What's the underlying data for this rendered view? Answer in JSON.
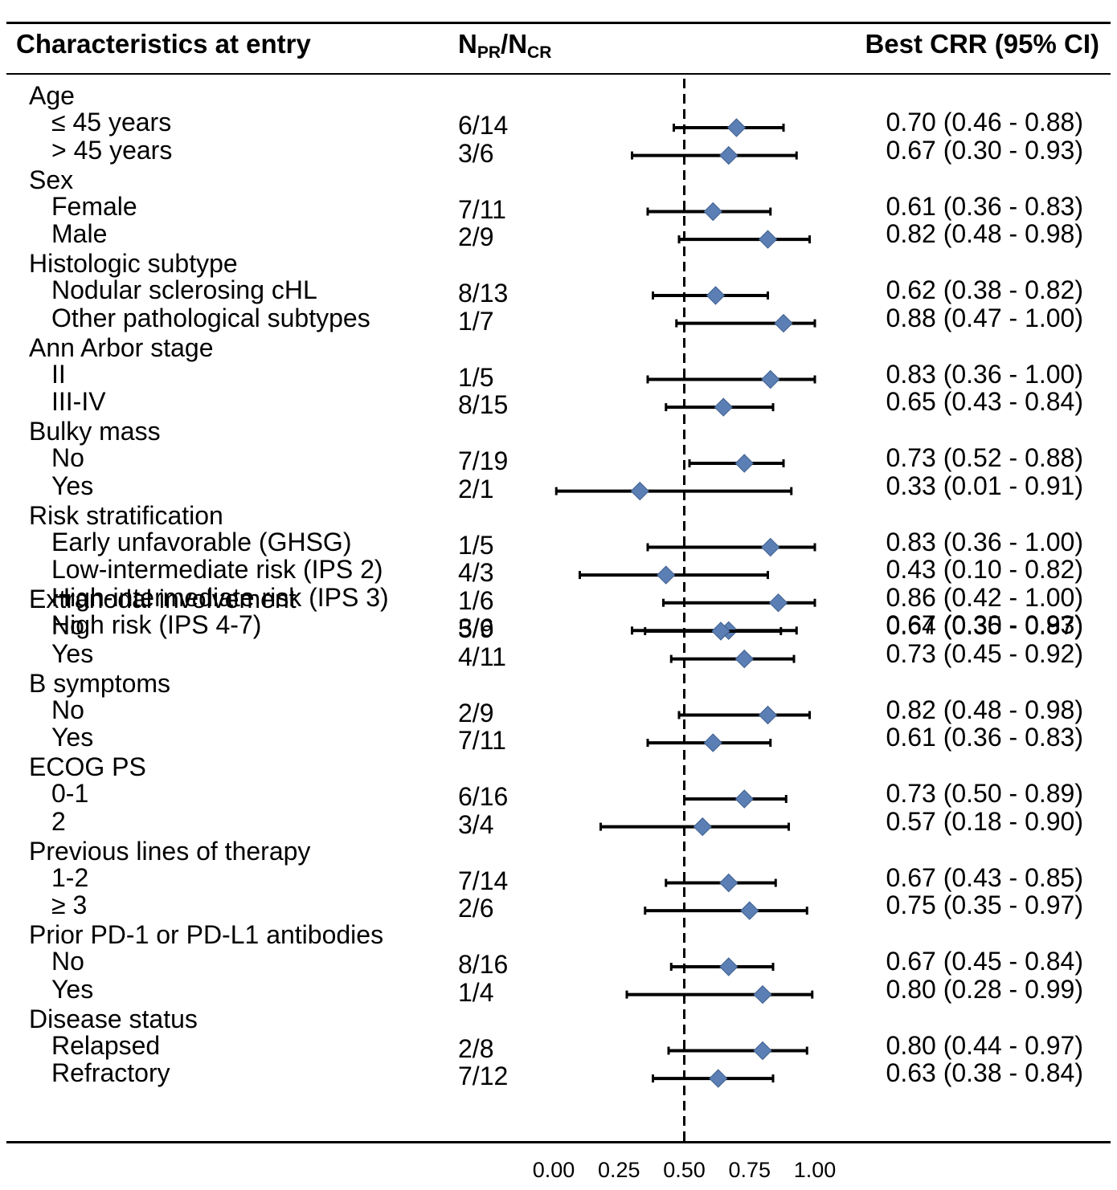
{
  "header": {
    "characteristics": "Characteristics at entry",
    "n_main": "N",
    "n_sub_pr": "PR",
    "n_slash": "/N",
    "n_sub_cr": "CR",
    "estimate": "Best CRR (95% CI)"
  },
  "chart_data": {
    "type": "forest",
    "xlim": [
      0.0,
      1.0
    ],
    "x_ticks": [
      "0.00",
      "0.25",
      "0.50",
      "0.75",
      "1.00"
    ],
    "x_tick_values": [
      0.0,
      0.25,
      0.5,
      0.75,
      1.0
    ],
    "reference_line": 0.5,
    "marker_color": "#5b7fb4",
    "groups": [
      {
        "label": "Age",
        "items": [
          {
            "label": "≤  45 years",
            "n": "6/14",
            "est": 0.7,
            "lo": 0.46,
            "hi": 0.88,
            "text": "0.70 (0.46 - 0.88)"
          },
          {
            "label": "> 45 years",
            "n": "3/6",
            "est": 0.67,
            "lo": 0.3,
            "hi": 0.93,
            "text": "0.67 (0.30 - 0.93)"
          }
        ]
      },
      {
        "label": "Sex",
        "items": [
          {
            "label": "Female",
            "n": "7/11",
            "est": 0.61,
            "lo": 0.36,
            "hi": 0.83,
            "text": "0.61 (0.36 - 0.83)"
          },
          {
            "label": "Male",
            "n": "2/9",
            "est": 0.82,
            "lo": 0.48,
            "hi": 0.98,
            "text": "0.82 (0.48 - 0.98)"
          }
        ]
      },
      {
        "label": "Histologic subtype",
        "items": [
          {
            "label": "Nodular sclerosing cHL",
            "n": "8/13",
            "est": 0.62,
            "lo": 0.38,
            "hi": 0.82,
            "text": "0.62 (0.38 - 0.82)"
          },
          {
            "label": "Other pathological subtypes",
            "n": "1/7",
            "est": 0.88,
            "lo": 0.47,
            "hi": 1.0,
            "text": "0.88 (0.47 - 1.00)"
          }
        ]
      },
      {
        "label": "Ann Arbor stage",
        "items": [
          {
            "label": "II",
            "n": "1/5",
            "est": 0.83,
            "lo": 0.36,
            "hi": 1.0,
            "text": "0.83 (0.36 - 1.00)"
          },
          {
            "label": "III-IV",
            "n": "8/15",
            "est": 0.65,
            "lo": 0.43,
            "hi": 0.84,
            "text": "0.65 (0.43 - 0.84)"
          }
        ]
      },
      {
        "label": "Bulky mass",
        "items": [
          {
            "label": "No",
            "n": "7/19",
            "est": 0.73,
            "lo": 0.52,
            "hi": 0.88,
            "text": "0.73 (0.52 - 0.88)"
          },
          {
            "label": "Yes",
            "n": "2/1",
            "est": 0.33,
            "lo": 0.01,
            "hi": 0.91,
            "text": "0.33 (0.01 - 0.91)"
          }
        ]
      },
      {
        "label": "Risk stratification",
        "items": [
          {
            "label": "Early unfavorable (GHSG)",
            "n": "1/5",
            "est": 0.83,
            "lo": 0.36,
            "hi": 1.0,
            "text": "0.83 (0.36 - 1.00)"
          },
          {
            "label": "Low-intermediate risk (IPS 2)",
            "n": "4/3",
            "est": 0.43,
            "lo": 0.1,
            "hi": 0.82,
            "text": "0.43 (0.10 - 0.82)"
          },
          {
            "label": "High-intermediate risk (IPS 3)",
            "n": "1/6",
            "est": 0.86,
            "lo": 0.42,
            "hi": 1.0,
            "text": "0.86 (0.42 - 1.00)"
          },
          {
            "label": "High risk (IPS 4-7)",
            "n": "3/6",
            "est": 0.67,
            "lo": 0.3,
            "hi": 0.93,
            "text": "0.67 (0.30 - 0.93)"
          }
        ]
      },
      {
        "label": "Extranodal involvement",
        "items": [
          {
            "label": "No",
            "n": "5/9",
            "est": 0.64,
            "lo": 0.35,
            "hi": 0.87,
            "text": "0.64 (0.35 - 0.87)"
          },
          {
            "label": "Yes",
            "n": "4/11",
            "est": 0.73,
            "lo": 0.45,
            "hi": 0.92,
            "text": "0.73 (0.45 - 0.92)"
          }
        ]
      },
      {
        "label": "B symptoms",
        "items": [
          {
            "label": "No",
            "n": "2/9",
            "est": 0.82,
            "lo": 0.48,
            "hi": 0.98,
            "text": "0.82 (0.48 - 0.98)"
          },
          {
            "label": "Yes",
            "n": "7/11",
            "est": 0.61,
            "lo": 0.36,
            "hi": 0.83,
            "text": "0.61 (0.36 - 0.83)"
          }
        ]
      },
      {
        "label": "ECOG PS",
        "items": [
          {
            "label": "0-1",
            "n": "6/16",
            "est": 0.73,
            "lo": 0.5,
            "hi": 0.89,
            "text": "0.73 (0.50 - 0.89)"
          },
          {
            "label": "2",
            "n": "3/4",
            "est": 0.57,
            "lo": 0.18,
            "hi": 0.9,
            "text": "0.57 (0.18 - 0.90)"
          }
        ]
      },
      {
        "label": "Previous lines of therapy",
        "items": [
          {
            "label": "1-2",
            "n": "7/14",
            "est": 0.67,
            "lo": 0.43,
            "hi": 0.85,
            "text": "0.67 (0.43 - 0.85)"
          },
          {
            "label": "≥ 3",
            "n": "2/6",
            "est": 0.75,
            "lo": 0.35,
            "hi": 0.97,
            "text": "0.75 (0.35 - 0.97)"
          }
        ]
      },
      {
        "label": "Prior PD-1 or PD-L1 antibodies",
        "items": [
          {
            "label": "No",
            "n": "8/16",
            "est": 0.67,
            "lo": 0.45,
            "hi": 0.84,
            "text": "0.67 (0.45 - 0.84)"
          },
          {
            "label": "Yes",
            "n": "1/4",
            "est": 0.8,
            "lo": 0.28,
            "hi": 0.99,
            "text": "0.80 (0.28 - 0.99)"
          }
        ]
      },
      {
        "label": "Disease status",
        "items": [
          {
            "label": "Relapsed",
            "n": "2/8",
            "est": 0.8,
            "lo": 0.44,
            "hi": 0.97,
            "text": "0.80 (0.44 - 0.97)"
          },
          {
            "label": "Refractory",
            "n": "7/12",
            "est": 0.63,
            "lo": 0.38,
            "hi": 0.84,
            "text": "0.63 (0.38 - 0.84)"
          }
        ]
      }
    ]
  }
}
